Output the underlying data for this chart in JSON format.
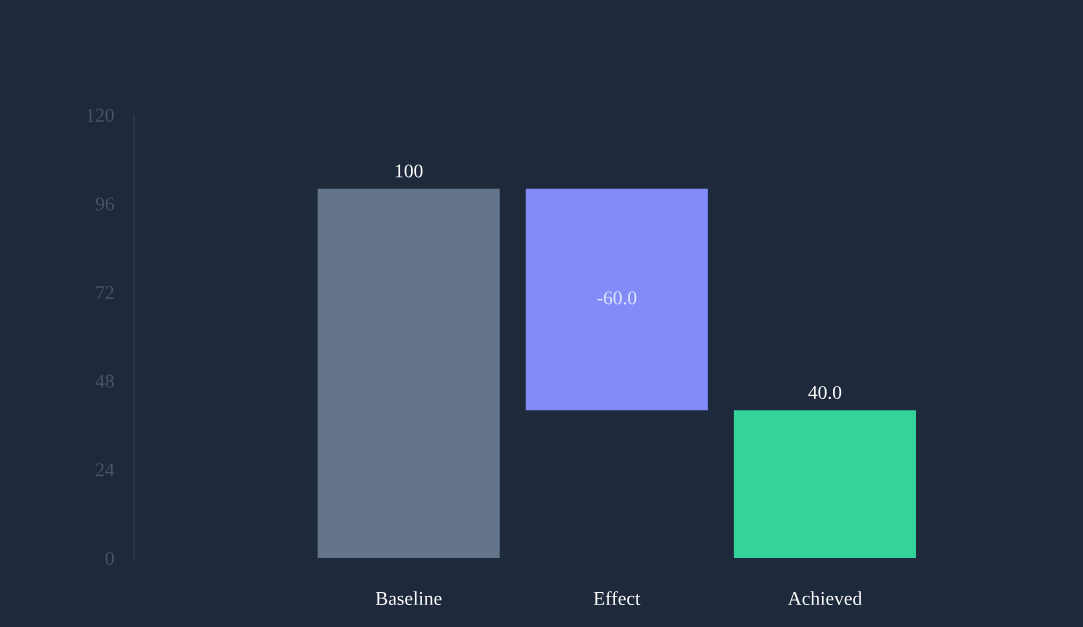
{
  "chart_data": {
    "type": "bar",
    "categories": [
      "Baseline",
      "Effect",
      "Achieved"
    ],
    "values": [
      100,
      -60,
      40
    ],
    "base": [
      0,
      100,
      0
    ],
    "colors": [
      "#64748b",
      "#818cf8",
      "#34d399"
    ],
    "value_labels": [
      "100",
      "-60.0",
      "40.0"
    ],
    "ylim": [
      0,
      120
    ],
    "yticks": [
      0,
      24,
      48,
      72,
      96,
      120
    ],
    "grid": false,
    "legend": false
  }
}
